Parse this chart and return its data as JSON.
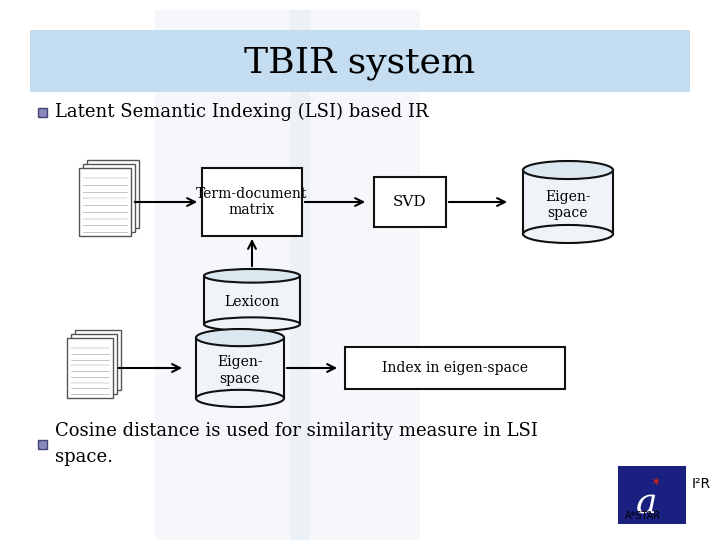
{
  "title": "TBIR system",
  "title_fontsize": 26,
  "bg_color": "#ffffff",
  "header_bg": "#c5ddf0",
  "bullet1": "Latent Semantic Indexing (LSI) based IR",
  "bullet2": "Cosine distance is used for similarity measure in LSI\nspace.",
  "bullet_fontsize": 13,
  "box_term_doc": "Term-document\nmatrix",
  "box_svd": "SVD",
  "box_eigen_top": "Eigen-\nspace",
  "box_eigen_bot": "Eigen-\nspace",
  "box_index": "Index in eigen-space",
  "box_lexicon": "Lexicon",
  "diagram_color": "#ffffff",
  "box_border": "#111111",
  "cyl_top_color": "#dce8f0",
  "cyl_body_color": "#f0f4f8",
  "watermark_color": "#c8d8e8"
}
